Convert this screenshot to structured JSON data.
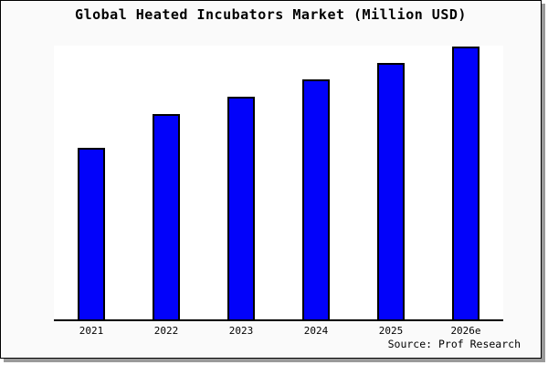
{
  "chart_data": {
    "type": "bar",
    "title": "Global Heated Incubators Market (Million USD)",
    "categories": [
      "2021",
      "2022",
      "2023",
      "2024",
      "2025",
      "2026e"
    ],
    "values": [
      188,
      225,
      244,
      263,
      281,
      299
    ],
    "xlabel": "",
    "ylabel": "",
    "ylim": [
      0,
      300
    ],
    "y_axis_labels": "none",
    "grid": false,
    "legend": "none",
    "bar_fill": "#0202fa",
    "bar_border": "#000000"
  },
  "footer": {
    "source": "Source: Prof Research"
  },
  "colors": {
    "canvas_background": "#fafafa",
    "plot_background": "#ffffff",
    "frame_border": "#000000",
    "frame_shadow": "#9a9a9a",
    "text": "#000000"
  }
}
